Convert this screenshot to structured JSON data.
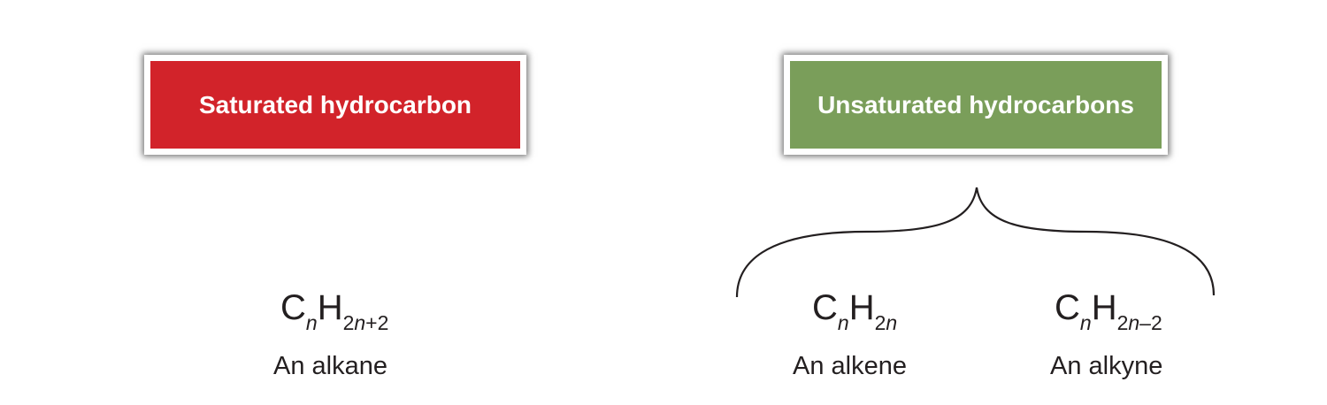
{
  "colors": {
    "saturated": "#d2232a",
    "unsaturated": "#7a9e5a",
    "text": "#231f20"
  },
  "boxes": {
    "saturated": {
      "label": "Saturated hydrocarbon"
    },
    "unsaturated": {
      "label": "Unsaturated hydrocarbons"
    }
  },
  "compounds": {
    "alkane": {
      "formula": {
        "c": "C",
        "n": "n",
        "h": "H",
        "sub": "2n+2",
        "sub_parts": [
          "2",
          "n",
          "+2"
        ]
      },
      "name": "An alkane"
    },
    "alkene": {
      "formula": {
        "c": "C",
        "n": "n",
        "h": "H",
        "sub": "2n",
        "sub_parts": [
          "2",
          "n",
          ""
        ]
      },
      "name": "An alkene"
    },
    "alkyne": {
      "formula": {
        "c": "C",
        "n": "n",
        "h": "H",
        "sub": "2n–2",
        "sub_parts": [
          "2",
          "n",
          "–2"
        ]
      },
      "name": "An alkyne"
    }
  }
}
